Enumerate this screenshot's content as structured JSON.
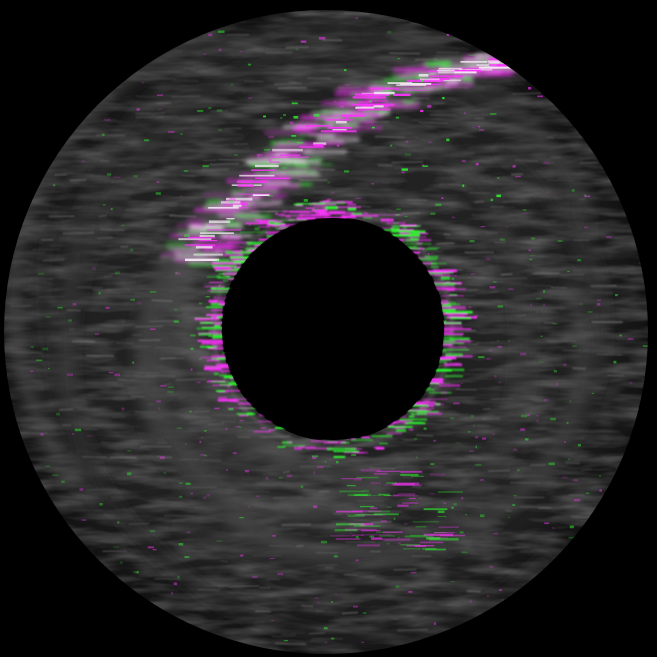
{
  "image": {
    "kind": "false-color circular scan overlay",
    "background_color": "#000000",
    "disc_tone_color": "#2a2a2a",
    "hole_color": "#000000",
    "channel_colors": {
      "magenta": "#ff33ff",
      "green": "#2bff2b",
      "overlap": "#f2e8f2"
    }
  }
}
